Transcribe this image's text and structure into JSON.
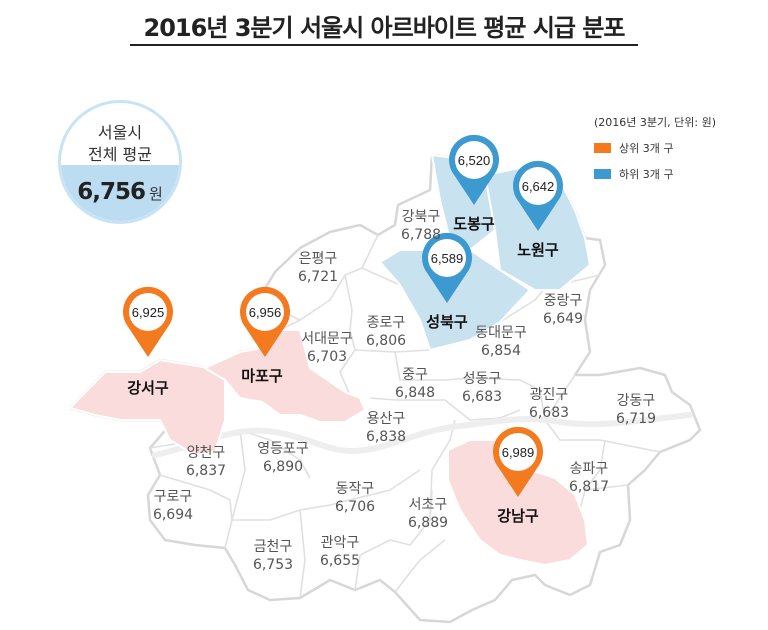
{
  "title": "2016년 3분기 서울시 아르바이트 평균 시급 분포",
  "average": {
    "line1": "서울시",
    "line2": "전체 평균",
    "value": "6,756",
    "unit": "원"
  },
  "legend": {
    "note": "(2016년 3분기, 단위: 원)",
    "items": [
      {
        "label": "상위 3개 구",
        "color": "#f47a1f"
      },
      {
        "label": "하위 3개 구",
        "color": "#3d9ad1"
      }
    ]
  },
  "colors": {
    "top_fill": "#fbdcdc",
    "bottom_fill": "#c9e2f0",
    "pin_top": "#f47a1f",
    "pin_bottom": "#3d9ad1"
  },
  "districts": [
    {
      "id": "gangseo",
      "name": "강서구",
      "value": "6,925",
      "group": "top"
    },
    {
      "id": "mapo",
      "name": "마포구",
      "value": "6,956",
      "group": "top"
    },
    {
      "id": "gangnam",
      "name": "강남구",
      "value": "6,989",
      "group": "top"
    },
    {
      "id": "dobong",
      "name": "도봉구",
      "value": "6,520",
      "group": "bottom"
    },
    {
      "id": "nowon",
      "name": "노원구",
      "value": "6,642",
      "group": "bottom"
    },
    {
      "id": "seongbuk",
      "name": "성북구",
      "value": "6,589",
      "group": "bottom"
    },
    {
      "id": "gangbuk",
      "name": "강북구",
      "value": "6,788"
    },
    {
      "id": "eunpyeong",
      "name": "은평구",
      "value": "6,721"
    },
    {
      "id": "seodaemun",
      "name": "서대문구",
      "value": "6,703"
    },
    {
      "id": "jongno",
      "name": "종로구",
      "value": "6,806"
    },
    {
      "id": "jungnang",
      "name": "중랑구",
      "value": "6,649"
    },
    {
      "id": "dongdaemun",
      "name": "동대문구",
      "value": "6,854"
    },
    {
      "id": "junggu",
      "name": "중구",
      "value": "6,848"
    },
    {
      "id": "seongdong",
      "name": "성동구",
      "value": "6,683"
    },
    {
      "id": "gwangjin",
      "name": "광진구",
      "value": "6,683"
    },
    {
      "id": "gangdong",
      "name": "강동구",
      "value": "6,719"
    },
    {
      "id": "yongsan",
      "name": "용산구",
      "value": "6,838"
    },
    {
      "id": "yangcheon",
      "name": "양천구",
      "value": "6,837"
    },
    {
      "id": "yeongdeungpo",
      "name": "영등포구",
      "value": "6,890"
    },
    {
      "id": "songpa",
      "name": "송파구",
      "value": "6,817"
    },
    {
      "id": "guro",
      "name": "구로구",
      "value": "6,694"
    },
    {
      "id": "dongjak",
      "name": "동작구",
      "value": "6,706"
    },
    {
      "id": "seocho",
      "name": "서초구",
      "value": "6,889"
    },
    {
      "id": "geumcheon",
      "name": "금천구",
      "value": "6,753"
    },
    {
      "id": "gwanak",
      "name": "관악구",
      "value": "6,655"
    }
  ]
}
